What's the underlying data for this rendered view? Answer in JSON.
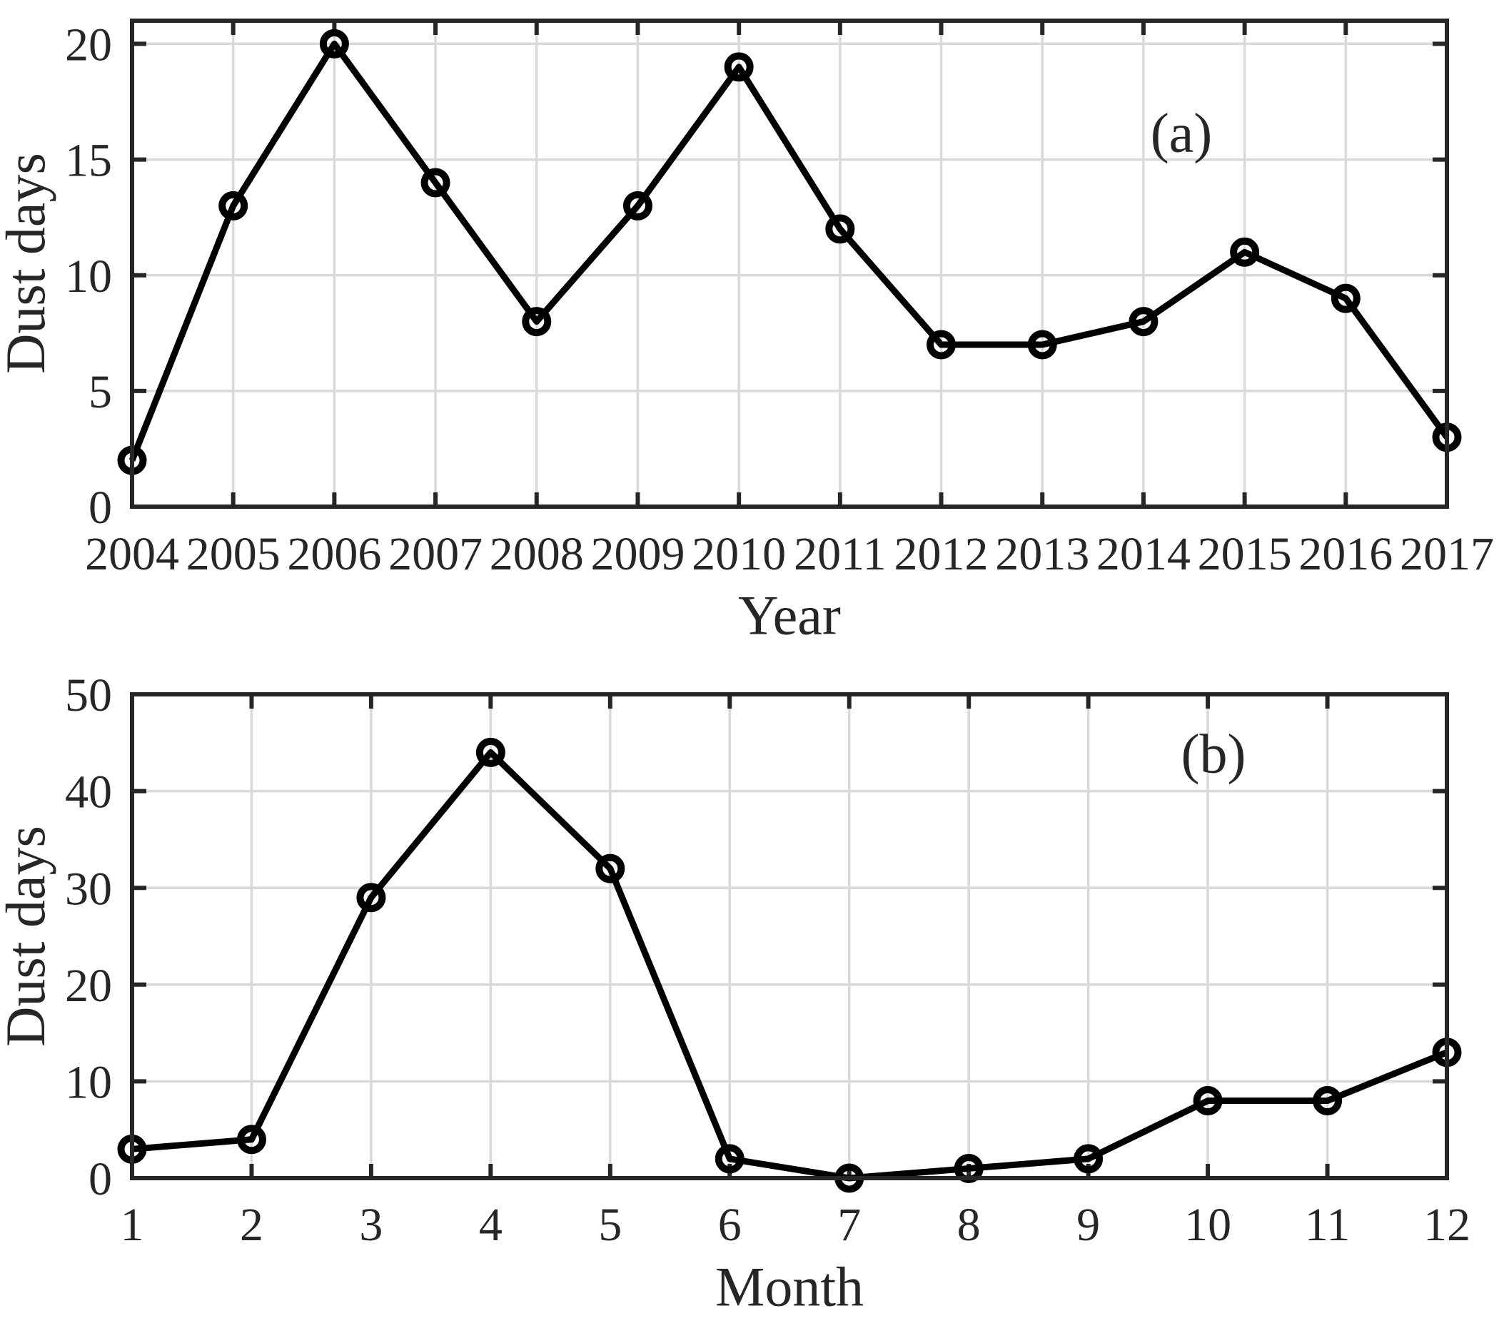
{
  "figure": {
    "background": "#ffffff",
    "axis_color": "#262626",
    "grid_color": "#d9d9d9",
    "series_color": "#000000",
    "text_color": "#262626"
  },
  "chart_data": [
    {
      "type": "line",
      "panel_label": "(a)",
      "title": "",
      "xlabel": "Year",
      "ylabel": "Dust days",
      "x": [
        "2004",
        "2005",
        "2006",
        "2007",
        "2008",
        "2009",
        "2010",
        "2011",
        "2012",
        "2013",
        "2014",
        "2015",
        "2016",
        "2017"
      ],
      "values": [
        2,
        13,
        20,
        14,
        8,
        13,
        19,
        12,
        7,
        7,
        8,
        11,
        9,
        3
      ],
      "ylim": [
        0,
        21
      ],
      "yticks": [
        0,
        5,
        10,
        15,
        20
      ],
      "grid": true,
      "marker": "circle",
      "legend": null
    },
    {
      "type": "line",
      "panel_label": "(b)",
      "title": "",
      "xlabel": "Month",
      "ylabel": "Dust days",
      "x": [
        "1",
        "2",
        "3",
        "4",
        "5",
        "6",
        "7",
        "8",
        "9",
        "10",
        "11",
        "12"
      ],
      "values": [
        3,
        4,
        29,
        44,
        32,
        2,
        0,
        1,
        2,
        8,
        8,
        13
      ],
      "ylim": [
        0,
        50
      ],
      "yticks": [
        0,
        10,
        20,
        30,
        40,
        50
      ],
      "grid": true,
      "marker": "circle",
      "legend": null
    }
  ]
}
